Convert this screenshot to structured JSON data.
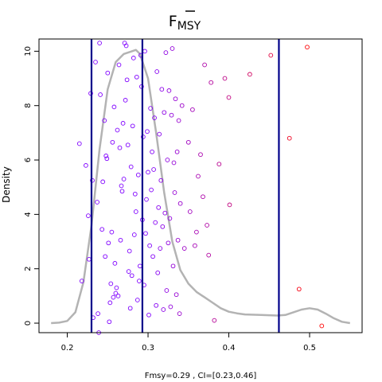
{
  "chart_data": {
    "type": "scatter",
    "title": "F",
    "title_subscript": "MSY",
    "xlabel": "Fmsy=0.29 , CI=[0.23,0.46]",
    "ylabel": "Density",
    "xlim": [
      0.165,
      0.565
    ],
    "ylim": [
      -0.35,
      10.45
    ],
    "x_ticks": [
      0.2,
      0.3,
      0.4,
      0.5
    ],
    "x_tick_labels": [
      "0.2",
      "0.3",
      "0.4",
      "0.5"
    ],
    "y_ticks": [
      0,
      2,
      4,
      6,
      8,
      10
    ],
    "y_tick_labels": [
      "0",
      "2",
      "4",
      "6",
      "8",
      "10"
    ],
    "grid": false,
    "colors": {
      "density": "#b3b3b3",
      "ref_lines": "#00008b",
      "points_low": "#8000ff",
      "points_high": "#ff0000",
      "axes": "#000000"
    },
    "vertical_lines": [
      0.23,
      0.293,
      0.462
    ],
    "density_curve": [
      [
        0.18,
        0.0
      ],
      [
        0.19,
        0.02
      ],
      [
        0.2,
        0.08
      ],
      [
        0.21,
        0.4
      ],
      [
        0.22,
        1.5
      ],
      [
        0.23,
        3.6
      ],
      [
        0.24,
        6.4
      ],
      [
        0.25,
        8.6
      ],
      [
        0.26,
        9.6
      ],
      [
        0.27,
        9.9
      ],
      [
        0.28,
        10.0
      ],
      [
        0.285,
        10.05
      ],
      [
        0.29,
        9.9
      ],
      [
        0.3,
        9.0
      ],
      [
        0.31,
        7.0
      ],
      [
        0.32,
        4.8
      ],
      [
        0.33,
        3.0
      ],
      [
        0.34,
        1.95
      ],
      [
        0.35,
        1.45
      ],
      [
        0.36,
        1.15
      ],
      [
        0.37,
        0.95
      ],
      [
        0.38,
        0.75
      ],
      [
        0.39,
        0.55
      ],
      [
        0.4,
        0.42
      ],
      [
        0.41,
        0.36
      ],
      [
        0.42,
        0.32
      ],
      [
        0.44,
        0.3
      ],
      [
        0.46,
        0.28
      ],
      [
        0.47,
        0.3
      ],
      [
        0.48,
        0.4
      ],
      [
        0.49,
        0.5
      ],
      [
        0.5,
        0.55
      ],
      [
        0.51,
        0.5
      ],
      [
        0.52,
        0.35
      ],
      [
        0.53,
        0.18
      ],
      [
        0.54,
        0.05
      ],
      [
        0.55,
        0.0
      ]
    ],
    "points": [
      [
        0.215,
        6.6
      ],
      [
        0.218,
        1.55
      ],
      [
        0.223,
        5.8
      ],
      [
        0.226,
        3.95
      ],
      [
        0.227,
        2.35
      ],
      [
        0.229,
        8.45
      ],
      [
        0.231,
        5.25
      ],
      [
        0.232,
        0.2
      ],
      [
        0.235,
        9.6
      ],
      [
        0.237,
        4.45
      ],
      [
        0.238,
        0.35
      ],
      [
        0.239,
        -0.35
      ],
      [
        0.24,
        10.3
      ],
      [
        0.241,
        8.4
      ],
      [
        0.243,
        3.45
      ],
      [
        0.244,
        5.2
      ],
      [
        0.246,
        7.45
      ],
      [
        0.247,
        2.45
      ],
      [
        0.248,
        6.15
      ],
      [
        0.249,
        6.05
      ],
      [
        0.25,
        9.2
      ],
      [
        0.251,
        2.95
      ],
      [
        0.252,
        0.05
      ],
      [
        0.253,
        0.75
      ],
      [
        0.254,
        1.45
      ],
      [
        0.255,
        3.35
      ],
      [
        0.256,
        6.65
      ],
      [
        0.257,
        0.95
      ],
      [
        0.258,
        7.95
      ],
      [
        0.259,
        2.2
      ],
      [
        0.26,
        1.1
      ],
      [
        0.261,
        1.3
      ],
      [
        0.262,
        7.1
      ],
      [
        0.263,
        1.0
      ],
      [
        0.264,
        9.5
      ],
      [
        0.265,
        6.45
      ],
      [
        0.266,
        3.05
      ],
      [
        0.267,
        5.05
      ],
      [
        0.268,
        4.85
      ],
      [
        0.269,
        7.35
      ],
      [
        0.27,
        5.3
      ],
      [
        0.271,
        10.3
      ],
      [
        0.272,
        8.2
      ],
      [
        0.273,
        10.2
      ],
      [
        0.274,
        8.95
      ],
      [
        0.275,
        6.55
      ],
      [
        0.276,
        1.9
      ],
      [
        0.277,
        2.65
      ],
      [
        0.278,
        0.55
      ],
      [
        0.279,
        5.75
      ],
      [
        0.28,
        1.75
      ],
      [
        0.281,
        7.25
      ],
      [
        0.282,
        9.75
      ],
      [
        0.283,
        3.25
      ],
      [
        0.284,
        4.75
      ],
      [
        0.285,
        4.1
      ],
      [
        0.286,
        9.05
      ],
      [
        0.287,
        0.85
      ],
      [
        0.288,
        5.45
      ],
      [
        0.289,
        1.55
      ],
      [
        0.29,
        2.1
      ],
      [
        0.291,
        9.85
      ],
      [
        0.292,
        8.7
      ],
      [
        0.293,
        3.8
      ],
      [
        0.294,
        6.85
      ],
      [
        0.295,
        1.4
      ],
      [
        0.296,
        10.0
      ],
      [
        0.297,
        3.3
      ],
      [
        0.298,
        4.55
      ],
      [
        0.299,
        7.05
      ],
      [
        0.3,
        5.55
      ],
      [
        0.301,
        0.3
      ],
      [
        0.302,
        2.85
      ],
      [
        0.303,
        7.9
      ],
      [
        0.304,
        4.9
      ],
      [
        0.305,
        6.3
      ],
      [
        0.306,
        2.45
      ],
      [
        0.307,
        5.65
      ],
      [
        0.308,
        7.55
      ],
      [
        0.309,
        3.7
      ],
      [
        0.31,
        0.65
      ],
      [
        0.311,
        9.25
      ],
      [
        0.312,
        1.85
      ],
      [
        0.313,
        4.25
      ],
      [
        0.314,
        6.95
      ],
      [
        0.315,
        2.75
      ],
      [
        0.316,
        5.25
      ],
      [
        0.317,
        8.6
      ],
      [
        0.318,
        3.55
      ],
      [
        0.319,
        0.5
      ],
      [
        0.32,
        7.75
      ],
      [
        0.321,
        4.05
      ],
      [
        0.322,
        9.95
      ],
      [
        0.323,
        1.2
      ],
      [
        0.324,
        6.0
      ],
      [
        0.325,
        2.95
      ],
      [
        0.326,
        8.55
      ],
      [
        0.327,
        3.85
      ],
      [
        0.328,
        0.6
      ],
      [
        0.329,
        7.65
      ],
      [
        0.33,
        10.1
      ],
      [
        0.331,
        2.1
      ],
      [
        0.332,
        5.9
      ],
      [
        0.333,
        4.8
      ],
      [
        0.334,
        8.25
      ],
      [
        0.335,
        1.05
      ],
      [
        0.336,
        6.3
      ],
      [
        0.337,
        3.05
      ],
      [
        0.338,
        7.45
      ],
      [
        0.339,
        0.35
      ],
      [
        0.34,
        4.4
      ],
      [
        0.342,
        8.0
      ],
      [
        0.345,
        2.75
      ],
      [
        0.35,
        6.65
      ],
      [
        0.352,
        4.1
      ],
      [
        0.355,
        7.85
      ],
      [
        0.358,
        2.85
      ],
      [
        0.36,
        3.35
      ],
      [
        0.362,
        5.4
      ],
      [
        0.365,
        6.2
      ],
      [
        0.368,
        4.65
      ],
      [
        0.37,
        9.5
      ],
      [
        0.373,
        3.6
      ],
      [
        0.375,
        2.5
      ],
      [
        0.378,
        8.85
      ],
      [
        0.382,
        0.1
      ],
      [
        0.388,
        5.85
      ],
      [
        0.395,
        9.0
      ],
      [
        0.4,
        8.3
      ],
      [
        0.401,
        4.35
      ],
      [
        0.426,
        9.15
      ],
      [
        0.452,
        9.85
      ],
      [
        0.475,
        6.8
      ],
      [
        0.487,
        1.25
      ],
      [
        0.497,
        10.15
      ],
      [
        0.515,
        -0.1
      ]
    ]
  }
}
